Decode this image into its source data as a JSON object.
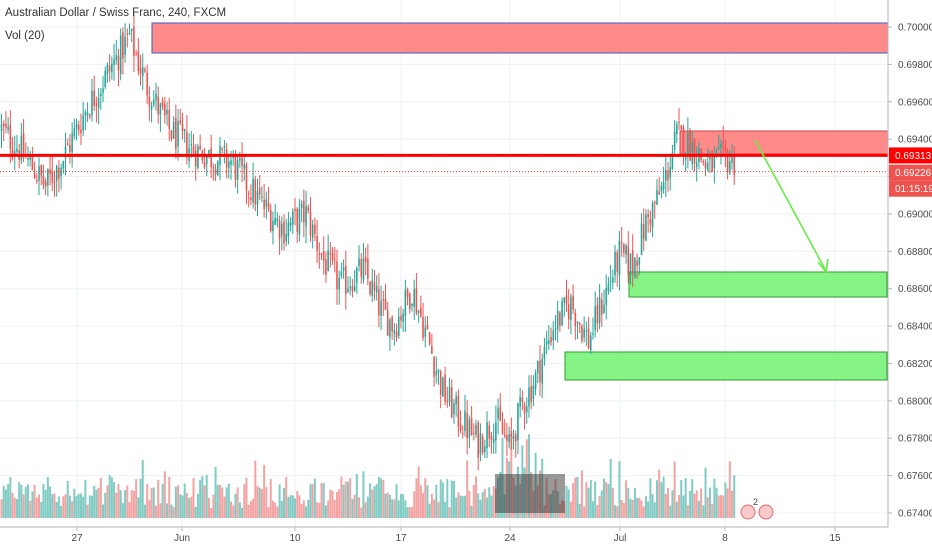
{
  "header": {
    "symbol_title": "Australian Dollar / Swiss Franc, 240, FXCM",
    "volume_label": "Vol (20)"
  },
  "colors": {
    "bull": "#26a69a",
    "bear": "#ef5350",
    "vol_bull": "#80cbc4",
    "vol_bear": "#f4a3a3",
    "resistance_zone": "#ff8080",
    "support_zone": "#7cf27c",
    "level_line": "#ff0000",
    "arrow": "#66ee44"
  },
  "price_tags": {
    "level": "0.69313",
    "last": "0.69226",
    "countdown": "01:15:19"
  },
  "chart_data": {
    "type": "candlestick",
    "title": "Australian Dollar / Swiss Franc, 240, FXCM",
    "y_range": [
      0.673,
      0.702
    ],
    "y_ticks": [
      "0.70000",
      "0.69800",
      "0.69600",
      "0.69400",
      "0.69200",
      "0.69000",
      "0.68800",
      "0.68600",
      "0.68400",
      "0.68200",
      "0.68000",
      "0.67800",
      "0.67600",
      "0.67400"
    ],
    "x_ticks": [
      "27",
      "Jun",
      "10",
      "17",
      "24",
      "Jul",
      "8",
      "15"
    ],
    "grid": true,
    "anchors": [
      [
        0,
        0.6945
      ],
      [
        8,
        0.6935
      ],
      [
        14,
        0.6925
      ],
      [
        20,
        0.6915
      ],
      [
        28,
        0.693
      ],
      [
        38,
        0.6955
      ],
      [
        48,
        0.6975
      ],
      [
        58,
        0.6995
      ],
      [
        66,
        0.6968
      ],
      [
        76,
        0.6945
      ],
      [
        86,
        0.6935
      ],
      [
        96,
        0.693
      ],
      [
        104,
        0.6928
      ],
      [
        112,
        0.6915
      ],
      [
        118,
        0.6905
      ],
      [
        128,
        0.6892
      ],
      [
        138,
        0.69
      ],
      [
        146,
        0.6875
      ],
      [
        154,
        0.6862
      ],
      [
        164,
        0.687
      ],
      [
        172,
        0.6848
      ],
      [
        178,
        0.684
      ],
      [
        186,
        0.686
      ],
      [
        192,
        0.6838
      ],
      [
        200,
        0.6805
      ],
      [
        208,
        0.679
      ],
      [
        216,
        0.6778
      ],
      [
        224,
        0.679
      ],
      [
        230,
        0.6775
      ],
      [
        236,
        0.6798
      ],
      [
        242,
        0.6812
      ],
      [
        250,
        0.684
      ],
      [
        258,
        0.6852
      ],
      [
        266,
        0.6832
      ],
      [
        272,
        0.6852
      ],
      [
        280,
        0.6878
      ],
      [
        286,
        0.6872
      ],
      [
        292,
        0.6895
      ],
      [
        300,
        0.6915
      ],
      [
        306,
        0.6942
      ],
      [
        314,
        0.6935
      ],
      [
        320,
        0.6925
      ],
      [
        328,
        0.693
      ],
      [
        332,
        0.6928
      ]
    ],
    "series": [
      {
        "name": "Vol (20)",
        "type": "volume"
      }
    ],
    "zones": [
      {
        "kind": "resistance",
        "from": "30 May",
        "to": "right edge",
        "y_low": 0.6986,
        "y_high": 0.7002
      },
      {
        "kind": "resistance",
        "from": "4 Jul",
        "to": "right edge",
        "y_low": 0.6927,
        "y_high": 0.6944
      },
      {
        "kind": "support",
        "from": "2 Jul",
        "to": "right edge",
        "y_low": 0.6856,
        "y_high": 0.6869
      },
      {
        "kind": "support",
        "from": "27 Jun",
        "to": "right edge",
        "y_low": 0.681,
        "y_high": 0.6825
      },
      {
        "kind": "volume-box",
        "from": "23 Jun",
        "to": "26 Jun"
      }
    ],
    "horizontal_line": 0.69313,
    "arrow": {
      "from": [
        0.694,
        "9 Jul"
      ],
      "to": [
        0.6868,
        "12 Jul"
      ]
    }
  }
}
